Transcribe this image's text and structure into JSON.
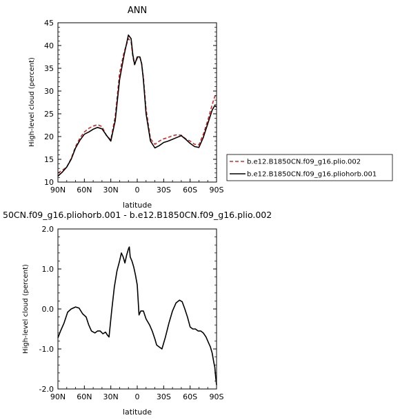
{
  "chart_data": [
    {
      "type": "line",
      "title": "ANN",
      "xlabel": "latitude",
      "ylabel": "High-level cloud (percent)",
      "xlim": [
        90,
        -90
      ],
      "ylim": [
        10,
        45
      ],
      "x_ticks": [
        {
          "value": 90,
          "label": "90N"
        },
        {
          "value": 60,
          "label": "60N"
        },
        {
          "value": 30,
          "label": "30N"
        },
        {
          "value": 0,
          "label": "0"
        },
        {
          "value": -30,
          "label": "30S"
        },
        {
          "value": -60,
          "label": "60S"
        },
        {
          "value": -90,
          "label": "90S"
        }
      ],
      "y_ticks": [
        10,
        15,
        20,
        25,
        30,
        35,
        40,
        45
      ],
      "legend_position": "right",
      "series": [
        {
          "name": "b.e12.B1850CN.f09_g16.plio.002",
          "color": "#d62728",
          "dash": "dashed",
          "x": [
            90,
            85,
            80,
            75,
            70,
            65,
            60,
            55,
            50,
            45,
            40,
            35,
            30,
            25,
            20,
            15,
            10,
            7,
            5,
            3,
            0,
            -3,
            -5,
            -7,
            -10,
            -15,
            -20,
            -25,
            -30,
            -35,
            -40,
            -45,
            -50,
            -55,
            -60,
            -65,
            -70,
            -75,
            -80,
            -85,
            -88,
            -90
          ],
          "y": [
            12,
            12.6,
            13.3,
            15.2,
            17.8,
            19.7,
            21.0,
            21.8,
            22.3,
            22.6,
            22.2,
            20.2,
            19.3,
            24.5,
            34.0,
            38.5,
            41.5,
            40.8,
            37.5,
            35.8,
            37.2,
            37.5,
            36.0,
            33.0,
            26.0,
            19.5,
            18.3,
            19.0,
            19.5,
            19.8,
            20.2,
            20.4,
            20.3,
            19.5,
            19.0,
            18.3,
            18.2,
            20.5,
            23.5,
            27.0,
            28.8,
            29.2
          ]
        },
        {
          "name": "b.e12.B1850CN.f09_g16.pliohorb.001",
          "color": "#000000",
          "dash": "solid",
          "x": [
            90,
            85,
            80,
            75,
            70,
            65,
            60,
            55,
            50,
            45,
            40,
            35,
            30,
            25,
            20,
            15,
            10,
            7,
            5,
            3,
            0,
            -3,
            -5,
            -7,
            -10,
            -15,
            -20,
            -25,
            -30,
            -35,
            -40,
            -45,
            -50,
            -55,
            -60,
            -65,
            -70,
            -75,
            -80,
            -85,
            -88,
            -90
          ],
          "y": [
            11.3,
            12.2,
            13.3,
            15.0,
            17.5,
            19.2,
            20.5,
            21.0,
            21.6,
            22.0,
            21.7,
            20.3,
            19.0,
            23.5,
            32.5,
            37.8,
            42.3,
            41.5,
            38.0,
            35.8,
            37.5,
            37.5,
            36.0,
            32.5,
            25.0,
            19.0,
            17.5,
            18.0,
            18.7,
            19.0,
            19.4,
            19.8,
            20.2,
            19.4,
            18.5,
            17.8,
            17.6,
            19.8,
            22.8,
            25.8,
            26.8,
            26.5
          ]
        }
      ]
    },
    {
      "type": "line",
      "title": "50CN.f09_g16.pliohorb.001 - b.e12.B1850CN.f09_g16.plio.002",
      "xlabel": "latitude",
      "ylabel": "High-level cloud (percent)",
      "xlim": [
        90,
        -90
      ],
      "ylim": [
        -2.0,
        2.0
      ],
      "x_ticks": [
        {
          "value": 90,
          "label": "90N"
        },
        {
          "value": 60,
          "label": "60N"
        },
        {
          "value": 30,
          "label": "30N"
        },
        {
          "value": 0,
          "label": "0"
        },
        {
          "value": -30,
          "label": "30S"
        },
        {
          "value": -60,
          "label": "60S"
        },
        {
          "value": -90,
          "label": "90S"
        }
      ],
      "y_ticks": [
        {
          "value": -2.0,
          "label": "-2.0"
        },
        {
          "value": -1.0,
          "label": "-1.0"
        },
        {
          "value": 0.0,
          "label": "0.0"
        },
        {
          "value": 1.0,
          "label": "1.0"
        },
        {
          "value": 2.0,
          "label": "2.0"
        }
      ],
      "series": [
        {
          "name": "",
          "color": "#000000",
          "dash": "solid",
          "x": [
            90,
            87,
            83,
            79,
            75,
            70,
            66,
            62,
            58,
            55,
            52,
            48,
            45,
            42,
            39,
            36,
            34,
            32,
            29,
            26,
            23,
            20,
            18,
            16,
            14,
            12,
            10,
            9,
            8,
            6,
            4,
            2,
            0,
            -2,
            -4,
            -7,
            -10,
            -14,
            -17,
            -20,
            -22,
            -25,
            -28,
            -32,
            -36,
            -40,
            -44,
            -48,
            -51,
            -54,
            -57,
            -60,
            -63,
            -66,
            -69,
            -72,
            -75,
            -78,
            -81,
            -83,
            -85,
            -87,
            -88,
            -89,
            -90
          ],
          "y": [
            -0.72,
            -0.55,
            -0.35,
            -0.08,
            0.0,
            0.05,
            0.02,
            -0.12,
            -0.2,
            -0.4,
            -0.55,
            -0.6,
            -0.55,
            -0.55,
            -0.62,
            -0.58,
            -0.65,
            -0.7,
            -0.05,
            0.55,
            0.95,
            1.2,
            1.4,
            1.3,
            1.15,
            1.35,
            1.5,
            1.55,
            1.3,
            1.2,
            1.05,
            0.85,
            0.6,
            -0.15,
            -0.05,
            -0.05,
            -0.25,
            -0.4,
            -0.55,
            -0.75,
            -0.9,
            -0.95,
            -1.0,
            -0.7,
            -0.35,
            -0.05,
            0.15,
            0.22,
            0.18,
            0.0,
            -0.2,
            -0.45,
            -0.5,
            -0.5,
            -0.55,
            -0.55,
            -0.6,
            -0.7,
            -0.85,
            -0.95,
            -1.1,
            -1.35,
            -1.45,
            -1.7,
            -1.9
          ]
        }
      ]
    }
  ]
}
